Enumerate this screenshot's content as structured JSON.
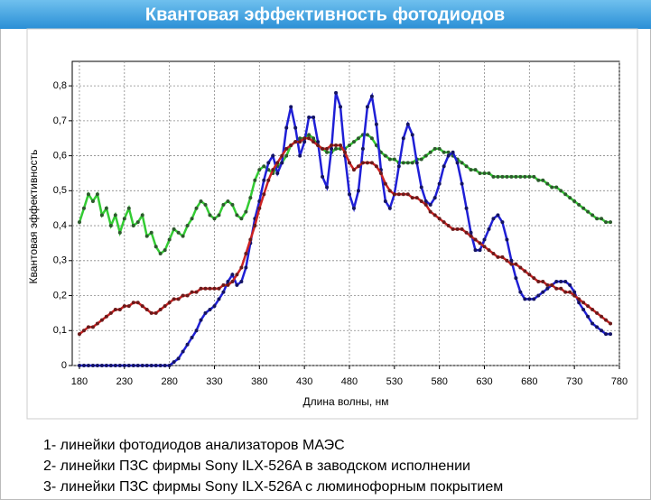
{
  "chart_data": {
    "type": "line",
    "title": "Квантовая эффективность фотодиодов",
    "xlabel": "Длина волны, нм",
    "ylabel": "Квантовая эффективность",
    "xlim": [
      172,
      780
    ],
    "ylim": [
      0,
      0.87
    ],
    "xticks": [
      180,
      230,
      280,
      330,
      380,
      430,
      480,
      530,
      580,
      630,
      680,
      730,
      780
    ],
    "yticks": [
      0,
      {
        "value": 0.1,
        "label": "0,1"
      },
      {
        "value": 0.2,
        "label": "0,2"
      },
      {
        "value": 0.3,
        "label": "0,3"
      },
      {
        "value": 0.4,
        "label": "0,4"
      },
      {
        "value": 0.5,
        "label": "0,5"
      },
      {
        "value": 0.6,
        "label": "0,6"
      },
      {
        "value": 0.7,
        "label": "0,7"
      },
      {
        "value": 0.8,
        "label": "0,8"
      }
    ],
    "grid": true,
    "x": [
      180,
      185,
      190,
      195,
      200,
      205,
      210,
      215,
      220,
      225,
      230,
      235,
      240,
      245,
      250,
      255,
      260,
      265,
      270,
      275,
      280,
      285,
      290,
      295,
      300,
      305,
      310,
      315,
      320,
      325,
      330,
      335,
      340,
      345,
      350,
      355,
      360,
      365,
      370,
      375,
      380,
      385,
      390,
      395,
      400,
      405,
      410,
      415,
      420,
      425,
      430,
      435,
      440,
      445,
      450,
      455,
      460,
      465,
      470,
      475,
      480,
      485,
      490,
      495,
      500,
      505,
      510,
      515,
      520,
      525,
      530,
      535,
      540,
      545,
      550,
      555,
      560,
      565,
      570,
      575,
      580,
      585,
      590,
      595,
      600,
      605,
      610,
      615,
      620,
      625,
      630,
      635,
      640,
      645,
      650,
      655,
      660,
      665,
      670,
      675,
      680,
      685,
      690,
      695,
      700,
      705,
      710,
      715,
      720,
      725,
      730,
      735,
      740,
      745,
      750,
      755,
      760,
      765,
      770
    ],
    "series": [
      {
        "name": "1",
        "color": "#33cc33",
        "marker_color": "#2d5a2d",
        "values": [
          0.41,
          0.45,
          0.49,
          0.47,
          0.49,
          0.43,
          0.45,
          0.4,
          0.43,
          0.38,
          0.42,
          0.45,
          0.4,
          0.41,
          0.43,
          0.37,
          0.38,
          0.34,
          0.32,
          0.33,
          0.36,
          0.39,
          0.38,
          0.37,
          0.4,
          0.42,
          0.45,
          0.47,
          0.46,
          0.43,
          0.42,
          0.43,
          0.46,
          0.47,
          0.46,
          0.43,
          0.42,
          0.44,
          0.48,
          0.53,
          0.56,
          0.57,
          0.56,
          0.55,
          0.57,
          0.58,
          0.6,
          0.63,
          0.64,
          0.65,
          0.65,
          0.66,
          0.65,
          0.63,
          0.62,
          0.61,
          0.61,
          0.62,
          0.62,
          0.62,
          0.63,
          0.64,
          0.65,
          0.66,
          0.66,
          0.65,
          0.63,
          0.61,
          0.6,
          0.59,
          0.59,
          0.58,
          0.58,
          0.58,
          0.58,
          0.59,
          0.59,
          0.6,
          0.61,
          0.62,
          0.62,
          0.61,
          0.61,
          0.6,
          0.59,
          0.58,
          0.57,
          0.56,
          0.56,
          0.55,
          0.55,
          0.55,
          0.54,
          0.54,
          0.54,
          0.54,
          0.54,
          0.54,
          0.54,
          0.54,
          0.54,
          0.54,
          0.53,
          0.53,
          0.52,
          0.51,
          0.51,
          0.5,
          0.49,
          0.48,
          0.47,
          0.46,
          0.45,
          0.44,
          0.43,
          0.42,
          0.42,
          0.41,
          0.41
        ]
      },
      {
        "name": "2",
        "color": "#1f1fd6",
        "marker_color": "#141463",
        "values": [
          0,
          0,
          0,
          0,
          0,
          0,
          0,
          0,
          0,
          0,
          0,
          0,
          0,
          0,
          0,
          0,
          0,
          0,
          0,
          0,
          0,
          0.01,
          0.02,
          0.04,
          0.06,
          0.08,
          0.1,
          0.13,
          0.15,
          0.16,
          0.17,
          0.19,
          0.21,
          0.24,
          0.26,
          0.23,
          0.24,
          0.28,
          0.35,
          0.42,
          0.47,
          0.53,
          0.58,
          0.6,
          0.55,
          0.58,
          0.68,
          0.74,
          0.68,
          0.6,
          0.64,
          0.71,
          0.71,
          0.64,
          0.54,
          0.51,
          0.62,
          0.78,
          0.74,
          0.6,
          0.49,
          0.45,
          0.5,
          0.62,
          0.74,
          0.77,
          0.69,
          0.56,
          0.47,
          0.45,
          0.49,
          0.57,
          0.65,
          0.69,
          0.66,
          0.58,
          0.51,
          0.47,
          0.46,
          0.48,
          0.52,
          0.57,
          0.6,
          0.61,
          0.58,
          0.52,
          0.45,
          0.38,
          0.33,
          0.33,
          0.36,
          0.39,
          0.42,
          0.43,
          0.41,
          0.36,
          0.3,
          0.25,
          0.21,
          0.19,
          0.19,
          0.19,
          0.2,
          0.21,
          0.22,
          0.23,
          0.24,
          0.24,
          0.24,
          0.23,
          0.21,
          0.18,
          0.16,
          0.14,
          0.12,
          0.11,
          0.1,
          0.09,
          0.09
        ]
      },
      {
        "name": "3",
        "color": "#cc2222",
        "marker_color": "#6b1a1a",
        "values": [
          0.09,
          0.1,
          0.11,
          0.11,
          0.12,
          0.13,
          0.14,
          0.15,
          0.16,
          0.16,
          0.17,
          0.17,
          0.18,
          0.18,
          0.17,
          0.16,
          0.15,
          0.15,
          0.16,
          0.17,
          0.18,
          0.19,
          0.19,
          0.2,
          0.2,
          0.21,
          0.21,
          0.22,
          0.22,
          0.22,
          0.22,
          0.22,
          0.23,
          0.23,
          0.24,
          0.26,
          0.28,
          0.32,
          0.36,
          0.4,
          0.45,
          0.49,
          0.53,
          0.56,
          0.58,
          0.6,
          0.62,
          0.63,
          0.64,
          0.64,
          0.65,
          0.65,
          0.64,
          0.63,
          0.62,
          0.62,
          0.63,
          0.63,
          0.63,
          0.61,
          0.58,
          0.56,
          0.57,
          0.58,
          0.58,
          0.58,
          0.57,
          0.55,
          0.52,
          0.5,
          0.49,
          0.49,
          0.49,
          0.49,
          0.48,
          0.48,
          0.47,
          0.46,
          0.44,
          0.43,
          0.42,
          0.41,
          0.4,
          0.39,
          0.39,
          0.39,
          0.38,
          0.37,
          0.36,
          0.35,
          0.34,
          0.33,
          0.32,
          0.31,
          0.31,
          0.3,
          0.29,
          0.29,
          0.28,
          0.27,
          0.26,
          0.25,
          0.24,
          0.24,
          0.23,
          0.23,
          0.22,
          0.22,
          0.21,
          0.21,
          0.2,
          0.19,
          0.18,
          0.17,
          0.16,
          0.15,
          0.14,
          0.13,
          0.12
        ]
      }
    ],
    "annotations": [
      "1",
      "2",
      "3"
    ],
    "notes": [
      "1-   линейки фотодиодов анализаторов МАЭС",
      "2-   линейки ПЗС фирмы Sony ILX-526A в заводском исполнении",
      "3-   линейки ПЗС фирмы Sony ILX-526A с люминофорным покрытием"
    ]
  }
}
